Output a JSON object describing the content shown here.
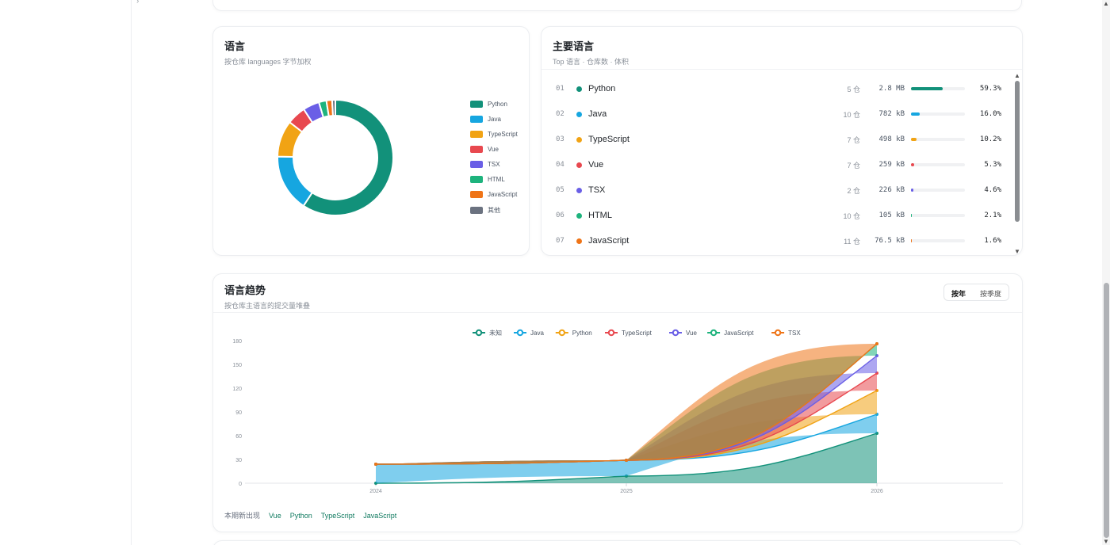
{
  "languages_card": {
    "title": "语言",
    "subtitle": "按仓库 languages 字节加权",
    "legend": [
      {
        "name": "Python",
        "color": "#12917a"
      },
      {
        "name": "Java",
        "color": "#16a6e0"
      },
      {
        "name": "TypeScript",
        "color": "#f1a314"
      },
      {
        "name": "Vue",
        "color": "#e8484f"
      },
      {
        "name": "TSX",
        "color": "#6a5fe6"
      },
      {
        "name": "HTML",
        "color": "#1eb37d"
      },
      {
        "name": "JavaScript",
        "color": "#ef7417"
      },
      {
        "name": "其他",
        "color": "#6b7280"
      }
    ],
    "slices": [
      59.3,
      16.0,
      10.2,
      5.3,
      4.6,
      2.1,
      1.6,
      0.9
    ]
  },
  "top_languages": {
    "title": "主要语言",
    "subtitle": "Top 语言 · 仓库数 · 体积",
    "rows": [
      {
        "index": "01",
        "name": "Python",
        "color": "#12917a",
        "repos": "5 仓",
        "size": "2.8 MB",
        "percent": "59.3%",
        "fill": 0.593
      },
      {
        "index": "02",
        "name": "Java",
        "color": "#16a6e0",
        "repos": "10 仓",
        "size": "782 kB",
        "percent": "16.0%",
        "fill": 0.16
      },
      {
        "index": "03",
        "name": "TypeScript",
        "color": "#f1a314",
        "repos": "7 仓",
        "size": "498 kB",
        "percent": "10.2%",
        "fill": 0.102
      },
      {
        "index": "04",
        "name": "Vue",
        "color": "#e8484f",
        "repos": "7 仓",
        "size": "259 kB",
        "percent": "5.3%",
        "fill": 0.053
      },
      {
        "index": "05",
        "name": "TSX",
        "color": "#6a5fe6",
        "repos": "2 仓",
        "size": "226 kB",
        "percent": "4.6%",
        "fill": 0.046
      },
      {
        "index": "06",
        "name": "HTML",
        "color": "#1eb37d",
        "repos": "10 仓",
        "size": "105 kB",
        "percent": "2.1%",
        "fill": 0.021
      },
      {
        "index": "07",
        "name": "JavaScript",
        "color": "#ef7417",
        "repos": "11 仓",
        "size": "76.5 kB",
        "percent": "1.6%",
        "fill": 0.016
      }
    ]
  },
  "trend_card": {
    "title": "语言趋势",
    "subtitle": "按仓库主语言的提交量堆叠",
    "toggle": {
      "by_year": "按年",
      "by_quarter": "按季度"
    },
    "new_label": "本期新出现",
    "new_tags": [
      "Vue",
      "Python",
      "TypeScript",
      "JavaScript"
    ]
  },
  "chart_data": {
    "type": "area",
    "stacked": true,
    "x": [
      "2024",
      "2025",
      "2026"
    ],
    "ylim": [
      0,
      180
    ],
    "yticks": [
      "0",
      "30",
      "60",
      "90",
      "120",
      "150",
      "180"
    ],
    "legend_position": "top-center",
    "grid": false,
    "series": [
      {
        "name": "未知",
        "color": "#12917a",
        "values": [
          0,
          9,
          63
        ]
      },
      {
        "name": "Java",
        "color": "#16a6e0",
        "values": [
          24,
          20,
          24
        ]
      },
      {
        "name": "Python",
        "color": "#f1a314",
        "values": [
          0,
          0,
          30
        ]
      },
      {
        "name": "TypeScript",
        "color": "#e8484f",
        "values": [
          0,
          0,
          22
        ]
      },
      {
        "name": "Vue",
        "color": "#6a5fe6",
        "values": [
          0,
          0,
          22
        ]
      },
      {
        "name": "JavaScript",
        "color": "#1eb37d",
        "values": [
          0,
          0,
          15
        ]
      },
      {
        "name": "TSX",
        "color": "#ef7417",
        "values": [
          0,
          0,
          0
        ]
      }
    ]
  }
}
